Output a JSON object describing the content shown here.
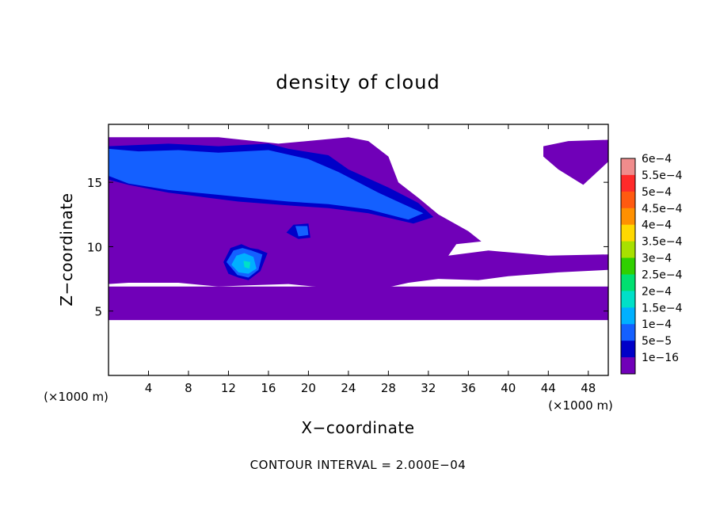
{
  "chart_data": {
    "type": "heatmap",
    "title": "density of cloud",
    "xlabel": "X−coordinate",
    "ylabel": "Z−coordinate",
    "x_unit": "(×1000 m)",
    "z_unit": "(×1000 m)",
    "xlim": [
      0,
      50
    ],
    "ylim": [
      0,
      19.5
    ],
    "x_ticks": [
      4,
      8,
      12,
      16,
      20,
      24,
      28,
      32,
      36,
      40,
      44,
      48
    ],
    "x_tick_labels": [
      "4",
      "8",
      "12",
      "16",
      "20",
      "24",
      "28",
      "32",
      "36",
      "40",
      "44",
      "48"
    ],
    "y_ticks": [
      5,
      10,
      15
    ],
    "y_tick_labels": [
      "5",
      "10",
      "15"
    ],
    "footer": "CONTOUR INTERVAL = 2.000E−04",
    "colorbar": {
      "levels": [
        {
          "label": "6e−4",
          "color": "#f08c8c"
        },
        {
          "label": "5.5e−4",
          "color": "#ff2a2a"
        },
        {
          "label": "5e−4",
          "color": "#ff5a10"
        },
        {
          "label": "4.5e−4",
          "color": "#ff9000"
        },
        {
          "label": "4e−4",
          "color": "#ffd800"
        },
        {
          "label": "3.5e−4",
          "color": "#a8e000"
        },
        {
          "label": "3e−4",
          "color": "#30d000"
        },
        {
          "label": "2.5e−4",
          "color": "#00e070"
        },
        {
          "label": "2e−4",
          "color": "#00e0c8"
        },
        {
          "label": "1.5e−4",
          "color": "#00b0ff"
        },
        {
          "label": "1e−4",
          "color": "#1460ff"
        },
        {
          "label": "5e−5",
          "color": "#0000c8"
        },
        {
          "label": "1e−16",
          "color": "#7000b8"
        }
      ]
    },
    "regions": [
      {
        "level": "1e−16",
        "points": [
          [
            0,
            18.5
          ],
          [
            11,
            18.5
          ],
          [
            17,
            18
          ],
          [
            24,
            18.5
          ],
          [
            26,
            18.2
          ],
          [
            28,
            17
          ],
          [
            29,
            15
          ],
          [
            31,
            13.8
          ],
          [
            33,
            12.5
          ],
          [
            36,
            11.2
          ],
          [
            37.3,
            10.4
          ],
          [
            34.8,
            10.2
          ],
          [
            34,
            9.3
          ],
          [
            38,
            9.7
          ],
          [
            44,
            9.3
          ],
          [
            50,
            9.4
          ],
          [
            50,
            8.2
          ],
          [
            45,
            8
          ],
          [
            40,
            7.7
          ],
          [
            37,
            7.4
          ],
          [
            33,
            7.5
          ],
          [
            30,
            7.2
          ],
          [
            26,
            6.5
          ],
          [
            22,
            6.8
          ],
          [
            18,
            7.1
          ],
          [
            14,
            7
          ],
          [
            11,
            6.9
          ],
          [
            7,
            7.2
          ],
          [
            4,
            7.2
          ],
          [
            2,
            7.2
          ],
          [
            0,
            7.1
          ]
        ]
      },
      {
        "level": "1e−16",
        "points": [
          [
            0,
            6.9
          ],
          [
            50,
            6.9
          ],
          [
            50,
            4.3
          ],
          [
            0,
            4.3
          ]
        ]
      },
      {
        "level": "1e−16",
        "points": [
          [
            43.5,
            17.8
          ],
          [
            46,
            18.2
          ],
          [
            50,
            18.3
          ],
          [
            50,
            16.6
          ],
          [
            47.5,
            14.8
          ],
          [
            45,
            16
          ],
          [
            43.5,
            17
          ]
        ]
      },
      {
        "level": "5e−5",
        "points": [
          [
            0,
            17.8
          ],
          [
            6,
            18
          ],
          [
            11,
            17.8
          ],
          [
            16,
            18
          ],
          [
            18,
            17.6
          ],
          [
            22,
            17.1
          ],
          [
            24,
            16
          ],
          [
            28,
            14.6
          ],
          [
            31,
            13.4
          ],
          [
            32.5,
            12.3
          ],
          [
            30.5,
            11.8
          ],
          [
            26,
            12.6
          ],
          [
            22,
            13
          ],
          [
            18,
            13.2
          ],
          [
            13,
            13.5
          ],
          [
            10,
            13.8
          ],
          [
            6,
            14.2
          ],
          [
            2,
            14.8
          ],
          [
            0,
            15.2
          ]
        ]
      },
      {
        "level": "5e−5",
        "points": [
          [
            11.5,
            8.8
          ],
          [
            12.2,
            9.9
          ],
          [
            13.3,
            10.2
          ],
          [
            14.2,
            9.9
          ],
          [
            15,
            9.8
          ],
          [
            15.9,
            9.5
          ],
          [
            15.2,
            8.1
          ],
          [
            14,
            7.4
          ],
          [
            13,
            7.6
          ],
          [
            12,
            7.9
          ]
        ]
      },
      {
        "level": "5e−5",
        "points": [
          [
            18.5,
            11.7
          ],
          [
            20,
            11.8
          ],
          [
            20.2,
            10.7
          ],
          [
            19,
            10.6
          ],
          [
            17.8,
            11.1
          ]
        ]
      },
      {
        "level": "1e−4",
        "points": [
          [
            0,
            17.6
          ],
          [
            3,
            17.4
          ],
          [
            7,
            17.5
          ],
          [
            11,
            17.3
          ],
          [
            16,
            17.5
          ],
          [
            20,
            16.8
          ],
          [
            23,
            15.8
          ],
          [
            27,
            14.2
          ],
          [
            29.5,
            13.3
          ],
          [
            31.5,
            12.6
          ],
          [
            30,
            12.1
          ],
          [
            26,
            12.9
          ],
          [
            22,
            13.3
          ],
          [
            18,
            13.5
          ],
          [
            14,
            13.8
          ],
          [
            10,
            14.1
          ],
          [
            6,
            14.4
          ],
          [
            2,
            14.9
          ],
          [
            0,
            15.5
          ]
        ]
      },
      {
        "level": "1e−4",
        "points": [
          [
            11.8,
            8.8
          ],
          [
            12.5,
            9.7
          ],
          [
            13.4,
            9.9
          ],
          [
            14.3,
            9.7
          ],
          [
            15.4,
            9.4
          ],
          [
            15,
            8.2
          ],
          [
            14,
            7.6
          ],
          [
            12.9,
            7.8
          ]
        ]
      },
      {
        "level": "1e−4",
        "points": [
          [
            18.7,
            11.6
          ],
          [
            19.9,
            11.6
          ],
          [
            20,
            10.9
          ],
          [
            19,
            10.8
          ]
        ]
      },
      {
        "level": "1.5e−4",
        "points": [
          [
            12.3,
            8.6
          ],
          [
            12.8,
            9.3
          ],
          [
            13.6,
            9.5
          ],
          [
            14.5,
            9.2
          ],
          [
            14.8,
            8.3
          ],
          [
            14,
            7.9
          ],
          [
            13,
            8
          ]
        ]
      },
      {
        "level": "2e−4",
        "points": [
          [
            13.5,
            8.9
          ],
          [
            14.2,
            8.8
          ],
          [
            14.1,
            8.3
          ],
          [
            13.6,
            8.4
          ]
        ]
      }
    ]
  }
}
